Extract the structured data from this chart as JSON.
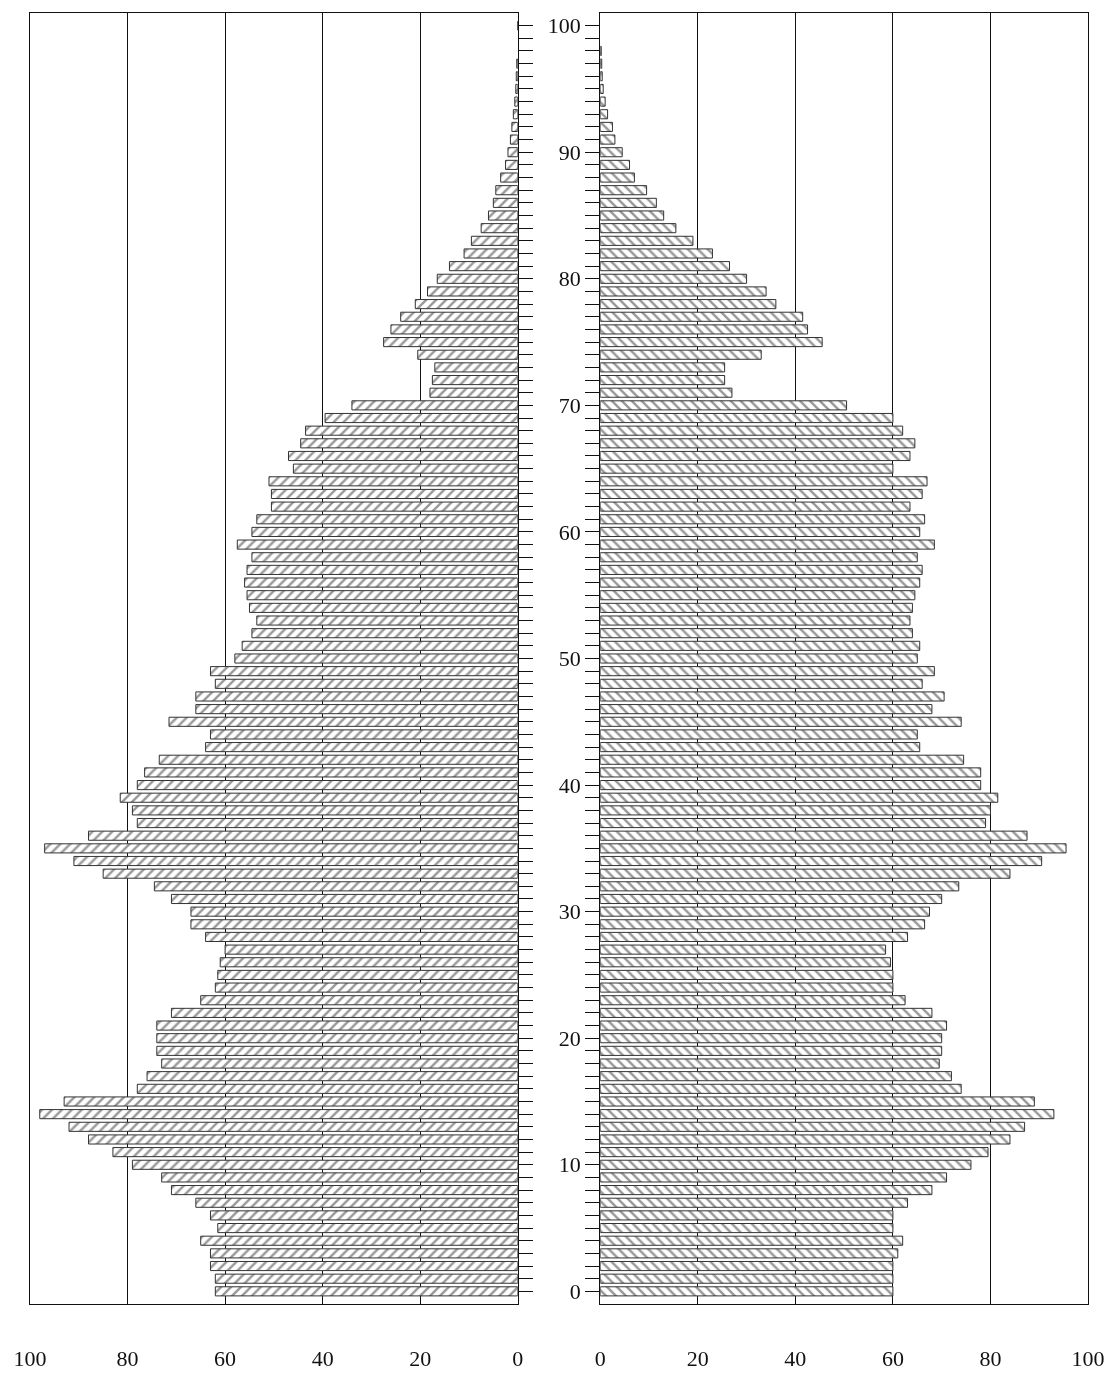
{
  "chart_data": [
    {
      "type": "bar",
      "orientation": "horizontal",
      "grid": "x",
      "tick_labels": "x",
      "x": [
        0,
        1,
        2,
        3,
        4,
        5,
        6,
        7,
        8,
        9,
        10,
        11,
        12,
        13,
        14,
        15,
        16,
        17,
        18,
        19,
        20,
        21,
        22,
        23,
        24,
        25,
        26,
        27,
        28,
        29,
        30,
        31,
        32,
        33,
        34,
        35,
        36,
        37,
        38,
        39,
        40,
        41,
        42,
        43,
        44,
        45,
        46,
        47,
        48,
        49,
        50,
        51,
        52,
        53,
        54,
        55,
        56,
        57,
        58,
        59,
        60,
        61,
        62,
        63,
        64,
        65,
        66,
        67,
        68,
        69,
        70,
        71,
        72,
        73,
        74,
        75,
        76,
        77,
        78,
        79,
        80,
        81,
        82,
        83,
        84,
        85,
        86,
        87,
        88,
        89,
        90,
        91,
        92,
        93,
        94,
        95,
        96,
        97,
        98,
        99,
        100
      ],
      "series": [
        {
          "color": "#333333",
          "values": [
            62,
            62,
            63,
            63,
            65,
            61.5,
            63,
            66,
            71,
            73,
            79,
            83,
            88,
            92,
            98,
            93,
            78,
            76,
            73,
            74,
            74,
            74,
            71,
            65,
            62,
            61.5,
            61,
            60,
            64,
            67,
            67,
            71,
            74.5,
            85,
            91,
            97,
            88,
            78,
            79,
            81.5,
            78,
            76.5,
            73.5,
            64,
            63,
            71.5,
            66,
            66,
            62,
            63,
            58,
            56.5,
            54.5,
            53.5,
            55,
            55.5,
            56,
            55.5,
            54.5,
            57.5,
            54.5,
            53.5,
            50.5,
            50.5,
            51,
            46,
            47,
            44.5,
            43.5,
            39.5,
            34,
            18,
            17.5,
            17,
            20.5,
            27.5,
            26,
            24,
            21,
            18.5,
            16.5,
            14,
            11,
            9.5,
            7.5,
            6,
            5,
            4.5,
            3.5,
            2.5,
            2,
            1.5,
            1.2,
            0.9,
            0.6,
            0.4,
            0.3,
            0.2,
            null,
            null,
            0
          ]
        }
      ],
      "xlim": [
        100,
        0
      ],
      "xticks": [
        100,
        80,
        60,
        40,
        20,
        0
      ],
      "ylim": [
        -1,
        101
      ],
      "yticks": [
        0,
        {
          "value": 1,
          "label": null
        },
        {
          "value": 2,
          "label": null
        },
        {
          "value": 3,
          "label": null
        },
        {
          "value": 4,
          "label": null
        },
        {
          "value": 5,
          "label": null
        },
        {
          "value": 6,
          "label": null
        },
        {
          "value": 7,
          "label": null
        },
        {
          "value": 8,
          "label": null
        },
        {
          "value": 9,
          "label": null
        },
        10,
        {
          "value": 11,
          "label": null
        },
        {
          "value": 12,
          "label": null
        },
        {
          "value": 13,
          "label": null
        },
        {
          "value": 14,
          "label": null
        },
        {
          "value": 15,
          "label": null
        },
        {
          "value": 16,
          "label": null
        },
        {
          "value": 17,
          "label": null
        },
        {
          "value": 18,
          "label": null
        },
        {
          "value": 19,
          "label": null
        },
        20,
        {
          "value": 21,
          "label": null
        },
        {
          "value": 22,
          "label": null
        },
        {
          "value": 23,
          "label": null
        },
        {
          "value": 24,
          "label": null
        },
        {
          "value": 25,
          "label": null
        },
        {
          "value": 26,
          "label": null
        },
        {
          "value": 27,
          "label": null
        },
        {
          "value": 28,
          "label": null
        },
        {
          "value": 29,
          "label": null
        },
        30,
        {
          "value": 31,
          "label": null
        },
        {
          "value": 32,
          "label": null
        },
        {
          "value": 33,
          "label": null
        },
        {
          "value": 34,
          "label": null
        },
        {
          "value": 35,
          "label": null
        },
        {
          "value": 36,
          "label": null
        },
        {
          "value": 37,
          "label": null
        },
        {
          "value": 38,
          "label": null
        },
        {
          "value": 39,
          "label": null
        },
        40,
        {
          "value": 41,
          "label": null
        },
        {
          "value": 42,
          "label": null
        },
        {
          "value": 43,
          "label": null
        },
        {
          "value": 44,
          "label": null
        },
        {
          "value": 45,
          "label": null
        },
        {
          "value": 46,
          "label": null
        },
        {
          "value": 47,
          "label": null
        },
        {
          "value": 48,
          "label": null
        },
        {
          "value": 49,
          "label": null
        },
        50,
        {
          "value": 51,
          "label": null
        },
        {
          "value": 52,
          "label": null
        },
        {
          "value": 53,
          "label": null
        },
        {
          "value": 54,
          "label": null
        },
        {
          "value": 55,
          "label": null
        },
        {
          "value": 56,
          "label": null
        },
        {
          "value": 57,
          "label": null
        },
        {
          "value": 58,
          "label": null
        },
        {
          "value": 59,
          "label": null
        },
        60,
        {
          "value": 61,
          "label": null
        },
        {
          "value": 62,
          "label": null
        },
        {
          "value": 63,
          "label": null
        },
        {
          "value": 64,
          "label": null
        },
        {
          "value": 65,
          "label": null
        },
        {
          "value": 66,
          "label": null
        },
        {
          "value": 67,
          "label": null
        },
        {
          "value": 68,
          "label": null
        },
        {
          "value": 69,
          "label": null
        },
        70,
        {
          "value": 71,
          "label": null
        },
        {
          "value": 72,
          "label": null
        },
        {
          "value": 73,
          "label": null
        },
        {
          "value": 74,
          "label": null
        },
        {
          "value": 75,
          "label": null
        },
        {
          "value": 76,
          "label": null
        },
        {
          "value": 77,
          "label": null
        },
        {
          "value": 78,
          "label": null
        },
        {
          "value": 79,
          "label": null
        },
        80,
        {
          "value": 81,
          "label": null
        },
        {
          "value": 82,
          "label": null
        },
        {
          "value": 83,
          "label": null
        },
        {
          "value": 84,
          "label": null
        },
        {
          "value": 85,
          "label": null
        },
        {
          "value": 86,
          "label": null
        },
        {
          "value": 87,
          "label": null
        },
        {
          "value": 88,
          "label": null
        },
        {
          "value": 89,
          "label": null
        },
        90,
        {
          "value": 91,
          "label": null
        },
        {
          "value": 92,
          "label": null
        },
        {
          "value": 93,
          "label": null
        },
        {
          "value": 94,
          "label": null
        },
        {
          "value": 95,
          "label": null
        },
        {
          "value": 96,
          "label": null
        },
        {
          "value": 97,
          "label": null
        },
        {
          "value": 98,
          "label": null
        },
        {
          "value": 99,
          "label": null
        },
        100
      ]
    },
    {
      "type": "bar",
      "orientation": "horizontal",
      "grid": "x",
      "x": [
        0,
        1,
        2,
        3,
        4,
        5,
        6,
        7,
        8,
        9,
        10,
        11,
        12,
        13,
        14,
        15,
        16,
        17,
        18,
        19,
        20,
        21,
        22,
        23,
        24,
        25,
        26,
        27,
        28,
        29,
        30,
        31,
        32,
        33,
        34,
        35,
        36,
        37,
        38,
        39,
        40,
        41,
        42,
        43,
        44,
        45,
        46,
        47,
        48,
        49,
        50,
        51,
        52,
        53,
        54,
        55,
        56,
        57,
        58,
        59,
        60,
        61,
        62,
        63,
        64,
        65,
        66,
        67,
        68,
        69,
        70,
        71,
        72,
        73,
        74,
        75,
        76,
        77,
        78,
        79,
        80,
        81,
        82,
        83,
        84,
        85,
        86,
        87,
        88,
        89,
        90,
        91,
        92,
        93,
        94,
        95,
        96,
        97,
        98
      ],
      "series": [
        {
          "color": "#333333",
          "values": [
            60,
            60,
            60,
            61,
            62,
            60,
            60,
            63,
            68,
            71,
            76,
            79.5,
            84,
            87,
            93,
            89,
            74,
            72,
            69.5,
            70,
            70,
            71,
            68,
            62.5,
            60,
            60,
            59.5,
            58.5,
            63,
            66.5,
            67.5,
            70,
            73.5,
            84,
            90.5,
            95.5,
            87.5,
            79,
            80,
            81.5,
            78,
            78,
            74.5,
            65.5,
            65,
            74,
            68,
            70.5,
            66,
            68.5,
            65,
            65.5,
            64,
            63.5,
            64,
            64.5,
            65.5,
            66,
            65,
            68.5,
            65.5,
            66.5,
            63.5,
            66,
            67,
            60,
            63.5,
            64.5,
            62,
            60,
            50.5,
            27,
            25.5,
            25.5,
            33,
            45.5,
            42.5,
            41.5,
            36,
            34,
            30,
            26.5,
            23,
            19,
            15.5,
            13,
            11.5,
            9.5,
            7,
            6,
            4.5,
            3,
            2.5,
            1.5,
            1,
            0.6,
            0.4,
            0.3,
            0.2
          ]
        }
      ],
      "xlim": [
        0,
        100
      ],
      "xticks": [
        0,
        20,
        40,
        60,
        80,
        100
      ],
      "ylim": [
        -1,
        101
      ],
      "yticks": [
        0,
        {
          "value": 1,
          "label": null
        },
        {
          "value": 2,
          "label": null
        },
        {
          "value": 3,
          "label": null
        },
        {
          "value": 4,
          "label": null
        },
        {
          "value": 5,
          "label": null
        },
        {
          "value": 6,
          "label": null
        },
        {
          "value": 7,
          "label": null
        },
        {
          "value": 8,
          "label": null
        },
        {
          "value": 9,
          "label": null
        },
        10,
        {
          "value": 11,
          "label": null
        },
        {
          "value": 12,
          "label": null
        },
        {
          "value": 13,
          "label": null
        },
        {
          "value": 14,
          "label": null
        },
        {
          "value": 15,
          "label": null
        },
        {
          "value": 16,
          "label": null
        },
        {
          "value": 17,
          "label": null
        },
        {
          "value": 18,
          "label": null
        },
        {
          "value": 19,
          "label": null
        },
        20,
        {
          "value": 21,
          "label": null
        },
        {
          "value": 22,
          "label": null
        },
        {
          "value": 23,
          "label": null
        },
        {
          "value": 24,
          "label": null
        },
        {
          "value": 25,
          "label": null
        },
        {
          "value": 26,
          "label": null
        },
        {
          "value": 27,
          "label": null
        },
        {
          "value": 28,
          "label": null
        },
        {
          "value": 29,
          "label": null
        },
        30,
        {
          "value": 31,
          "label": null
        },
        {
          "value": 32,
          "label": null
        },
        {
          "value": 33,
          "label": null
        },
        {
          "value": 34,
          "label": null
        },
        {
          "value": 35,
          "label": null
        },
        {
          "value": 36,
          "label": null
        },
        {
          "value": 37,
          "label": null
        },
        {
          "value": 38,
          "label": null
        },
        {
          "value": 39,
          "label": null
        },
        40,
        {
          "value": 41,
          "label": null
        },
        {
          "value": 42,
          "label": null
        },
        {
          "value": 43,
          "label": null
        },
        {
          "value": 44,
          "label": null
        },
        {
          "value": 45,
          "label": null
        },
        {
          "value": 46,
          "label": null
        },
        {
          "value": 47,
          "label": null
        },
        {
          "value": 48,
          "label": null
        },
        {
          "value": 49,
          "label": null
        },
        50,
        {
          "value": 51,
          "label": null
        },
        {
          "value": 52,
          "label": null
        },
        {
          "value": 53,
          "label": null
        },
        {
          "value": 54,
          "label": null
        },
        {
          "value": 55,
          "label": null
        },
        {
          "value": 56,
          "label": null
        },
        {
          "value": 57,
          "label": null
        },
        {
          "value": 58,
          "label": null
        },
        {
          "value": 59,
          "label": null
        },
        60,
        {
          "value": 61,
          "label": null
        },
        {
          "value": 62,
          "label": null
        },
        {
          "value": 63,
          "label": null
        },
        {
          "value": 64,
          "label": null
        },
        {
          "value": 65,
          "label": null
        },
        {
          "value": 66,
          "label": null
        },
        {
          "value": 67,
          "label": null
        },
        {
          "value": 68,
          "label": null
        },
        {
          "value": 69,
          "label": null
        },
        70,
        {
          "value": 71,
          "label": null
        },
        {
          "value": 72,
          "label": null
        },
        {
          "value": 73,
          "label": null
        },
        {
          "value": 74,
          "label": null
        },
        {
          "value": 75,
          "label": null
        },
        {
          "value": 76,
          "label": null
        },
        {
          "value": 77,
          "label": null
        },
        {
          "value": 78,
          "label": null
        },
        {
          "value": 79,
          "label": null
        },
        80,
        {
          "value": 81,
          "label": null
        },
        {
          "value": 82,
          "label": null
        },
        {
          "value": 83,
          "label": null
        },
        {
          "value": 84,
          "label": null
        },
        {
          "value": 85,
          "label": null
        },
        {
          "value": 86,
          "label": null
        },
        {
          "value": 87,
          "label": null
        },
        {
          "value": 88,
          "label": null
        },
        {
          "value": 89,
          "label": null
        },
        90,
        {
          "value": 91,
          "label": null
        },
        {
          "value": 92,
          "label": null
        },
        {
          "value": 93,
          "label": null
        },
        {
          "value": 94,
          "label": null
        },
        {
          "value": 95,
          "label": null
        },
        {
          "value": 96,
          "label": null
        },
        {
          "value": 97,
          "label": null
        },
        {
          "value": 98,
          "label": null
        },
        {
          "value": 99,
          "label": null
        },
        100
      ]
    }
  ]
}
